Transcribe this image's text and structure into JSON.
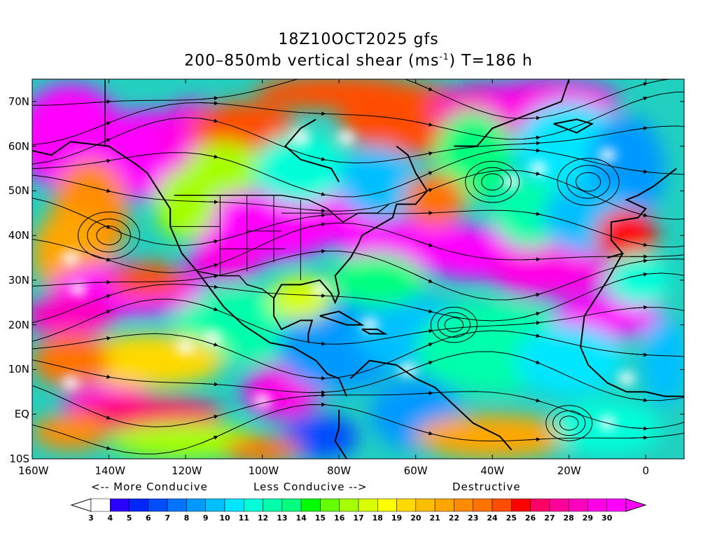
{
  "title": {
    "line1": "18Z10OCT2025 gfs",
    "line2": "200–850mb vertical shear (ms",
    "line2_sup": "-1",
    "line2_end": ") T=186 h"
  },
  "map": {
    "extent": {
      "lon": [
        -160,
        10
      ],
      "lat": [
        -10,
        75
      ]
    },
    "lat_labels": [
      "70N",
      "60N",
      "50N",
      "40N",
      "30N",
      "20N",
      "10N",
      "EQ",
      "10S"
    ],
    "lon_labels": [
      "160W",
      "140W",
      "120W",
      "100W",
      "80W",
      "60W",
      "40W",
      "20W",
      "0"
    ],
    "field": "200-850mb vertical shear",
    "units": "ms-1",
    "overlays": [
      "coastlines",
      "political-boundaries",
      "streamlines"
    ]
  },
  "legend": {
    "more_conducive": "<-- More Conducive",
    "less_conducive": "Less Conducive -->",
    "destructive": "Destructive",
    "ticks": [
      "3",
      "4",
      "5",
      "6",
      "7",
      "8",
      "9",
      "10",
      "11",
      "12",
      "13",
      "14",
      "15",
      "16",
      "17",
      "18",
      "19",
      "20",
      "21",
      "22",
      "23",
      "24",
      "25",
      "26",
      "27",
      "28",
      "29",
      "30"
    ],
    "colors": [
      "#ffffff",
      "#2a00ff",
      "#0026ff",
      "#004cff",
      "#0073ff",
      "#0099ff",
      "#00bfff",
      "#00e6ff",
      "#00ffd9",
      "#00ffaa",
      "#00ff7f",
      "#00ff00",
      "#66ff00",
      "#a6ff00",
      "#d9ff00",
      "#ffff00",
      "#ffd900",
      "#ffbf00",
      "#ffa600",
      "#ff8c00",
      "#ff7300",
      "#ff4d00",
      "#ff0000",
      "#ff0066",
      "#ff0099",
      "#ff00bf",
      "#ff00e6",
      "#ff00ff"
    ]
  }
}
